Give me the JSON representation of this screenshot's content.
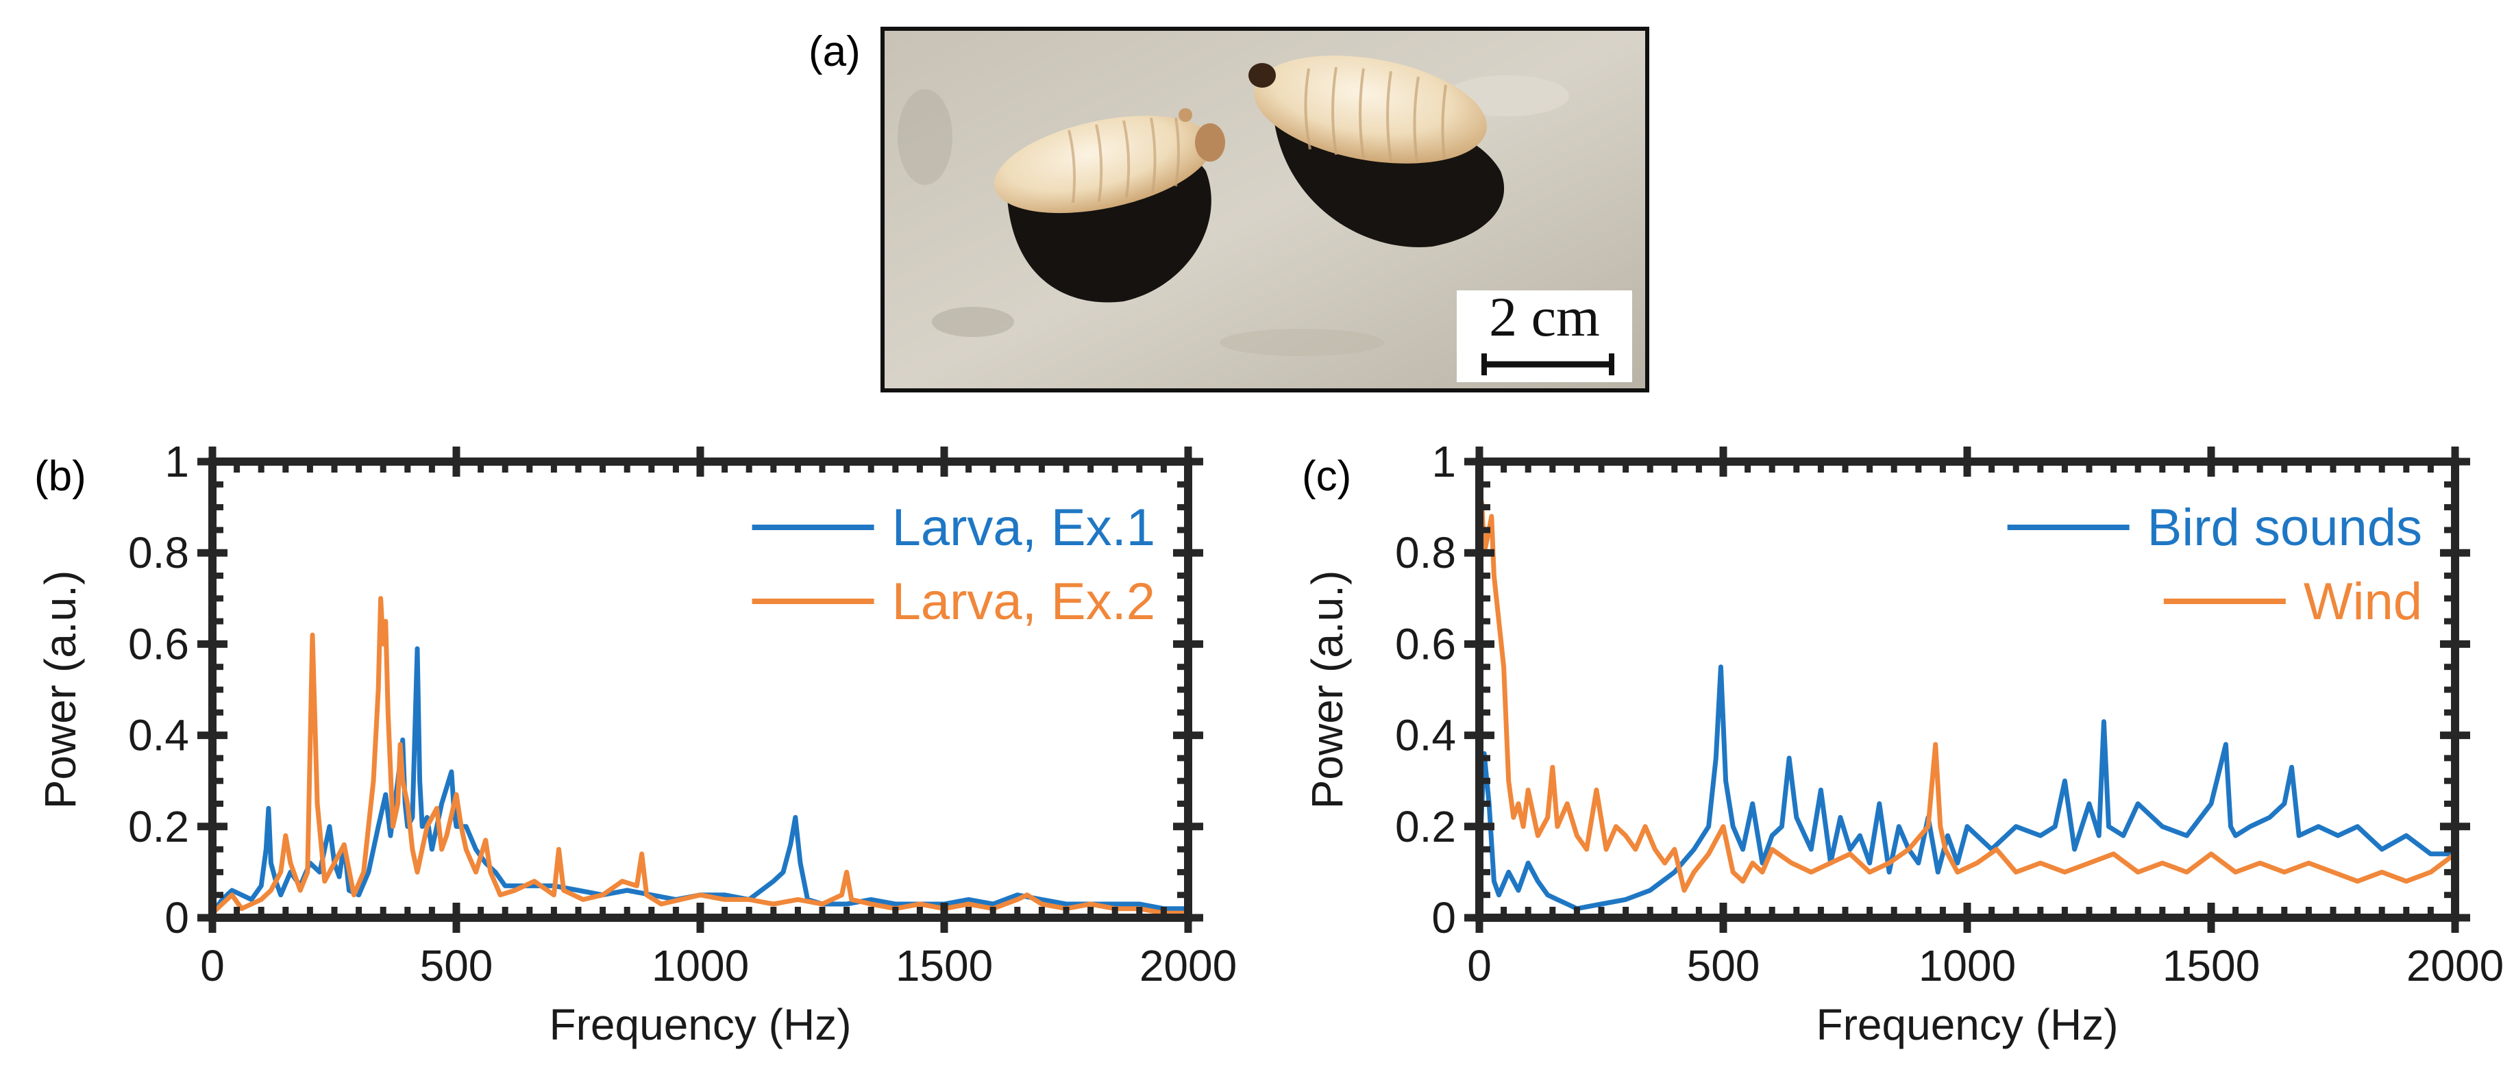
{
  "panel_a": {
    "label": "(a)",
    "photo_subject": "larvae",
    "scale_bar_label": "2 cm"
  },
  "colors": {
    "series1": "#1f77c4",
    "series2": "#f0873a",
    "axis": "#262626"
  },
  "chart_data": [
    {
      "panel": "(b)",
      "type": "line",
      "title": "",
      "xlabel": "Frequency (Hz)",
      "ylabel": "Power (a.u.)",
      "xlim": [
        0,
        2000
      ],
      "ylim": [
        0,
        1
      ],
      "xticks": [
        0,
        500,
        1000,
        1500,
        2000
      ],
      "yticks": [
        0,
        0.2,
        0.4,
        0.6,
        0.8,
        1
      ],
      "ytick_labels": [
        "0",
        "0.2",
        "0.4",
        "0.6",
        "0.8",
        "1"
      ],
      "legend_position": "top-right",
      "series": [
        {
          "name": "Larva, Ex.1",
          "x": [
            0,
            20,
            40,
            60,
            80,
            100,
            110,
            115,
            120,
            130,
            140,
            160,
            180,
            200,
            220,
            240,
            250,
            260,
            270,
            280,
            300,
            320,
            340,
            355,
            365,
            380,
            390,
            395,
            400,
            410,
            420,
            425,
            430,
            440,
            450,
            470,
            490,
            495,
            500,
            520,
            540,
            560,
            580,
            600,
            650,
            700,
            750,
            800,
            850,
            900,
            950,
            1000,
            1050,
            1100,
            1150,
            1170,
            1185,
            1195,
            1205,
            1220,
            1250,
            1300,
            1350,
            1400,
            1450,
            1500,
            1550,
            1600,
            1650,
            1700,
            1750,
            1800,
            1850,
            1900,
            1950,
            2000
          ],
          "values": [
            0.01,
            0.04,
            0.06,
            0.05,
            0.04,
            0.07,
            0.15,
            0.24,
            0.12,
            0.08,
            0.05,
            0.1,
            0.07,
            0.12,
            0.1,
            0.2,
            0.12,
            0.09,
            0.16,
            0.06,
            0.05,
            0.1,
            0.2,
            0.27,
            0.18,
            0.3,
            0.39,
            0.25,
            0.2,
            0.22,
            0.59,
            0.3,
            0.2,
            0.22,
            0.15,
            0.25,
            0.32,
            0.24,
            0.2,
            0.2,
            0.15,
            0.12,
            0.1,
            0.07,
            0.07,
            0.07,
            0.06,
            0.05,
            0.06,
            0.05,
            0.04,
            0.05,
            0.05,
            0.04,
            0.08,
            0.1,
            0.16,
            0.22,
            0.12,
            0.04,
            0.03,
            0.03,
            0.04,
            0.03,
            0.03,
            0.03,
            0.04,
            0.03,
            0.05,
            0.04,
            0.03,
            0.03,
            0.03,
            0.03,
            0.02,
            0.02
          ]
        },
        {
          "name": "Larva, Ex.2",
          "x": [
            0,
            20,
            40,
            60,
            80,
            100,
            120,
            140,
            150,
            160,
            180,
            195,
            205,
            215,
            230,
            250,
            270,
            290,
            310,
            320,
            330,
            340,
            345,
            350,
            355,
            360,
            370,
            380,
            385,
            390,
            400,
            410,
            420,
            440,
            460,
            470,
            480,
            500,
            510,
            520,
            540,
            560,
            570,
            590,
            620,
            660,
            700,
            710,
            720,
            760,
            800,
            840,
            870,
            880,
            890,
            920,
            960,
            1000,
            1050,
            1100,
            1150,
            1200,
            1250,
            1290,
            1300,
            1310,
            1350,
            1400,
            1450,
            1500,
            1550,
            1600,
            1650,
            1670,
            1700,
            1750,
            1800,
            1850,
            1900,
            1950,
            2000
          ],
          "values": [
            0.01,
            0.03,
            0.05,
            0.02,
            0.03,
            0.04,
            0.06,
            0.1,
            0.18,
            0.12,
            0.06,
            0.1,
            0.62,
            0.25,
            0.08,
            0.12,
            0.16,
            0.05,
            0.1,
            0.2,
            0.3,
            0.5,
            0.7,
            0.6,
            0.65,
            0.45,
            0.2,
            0.25,
            0.38,
            0.3,
            0.25,
            0.15,
            0.1,
            0.2,
            0.24,
            0.15,
            0.18,
            0.27,
            0.2,
            0.15,
            0.1,
            0.17,
            0.1,
            0.05,
            0.06,
            0.08,
            0.05,
            0.15,
            0.06,
            0.04,
            0.05,
            0.08,
            0.07,
            0.14,
            0.05,
            0.03,
            0.04,
            0.05,
            0.04,
            0.04,
            0.03,
            0.04,
            0.03,
            0.05,
            0.1,
            0.04,
            0.03,
            0.02,
            0.03,
            0.02,
            0.03,
            0.02,
            0.04,
            0.05,
            0.03,
            0.02,
            0.03,
            0.02,
            0.02,
            0.01,
            0.01
          ]
        }
      ]
    },
    {
      "panel": "(c)",
      "type": "line",
      "title": "",
      "xlabel": "Frequency (Hz)",
      "ylabel": "Power (a.u.)",
      "xlim": [
        0,
        2000
      ],
      "ylim": [
        0,
        1
      ],
      "xticks": [
        0,
        500,
        1000,
        1500,
        2000
      ],
      "yticks": [
        0,
        0.2,
        0.4,
        0.6,
        0.8,
        1
      ],
      "ytick_labels": [
        "0",
        "0.2",
        "0.4",
        "0.6",
        "0.8",
        "1"
      ],
      "legend_position": "top-right",
      "series": [
        {
          "name": "Bird sounds",
          "x": [
            0,
            10,
            20,
            30,
            40,
            60,
            80,
            100,
            120,
            140,
            160,
            180,
            200,
            250,
            300,
            350,
            400,
            440,
            470,
            485,
            495,
            505,
            520,
            540,
            560,
            580,
            600,
            620,
            635,
            650,
            680,
            700,
            720,
            740,
            760,
            780,
            800,
            820,
            840,
            860,
            880,
            900,
            920,
            940,
            960,
            980,
            1000,
            1050,
            1100,
            1150,
            1180,
            1200,
            1220,
            1250,
            1270,
            1280,
            1290,
            1320,
            1350,
            1400,
            1450,
            1500,
            1530,
            1540,
            1550,
            1580,
            1620,
            1650,
            1665,
            1680,
            1720,
            1760,
            1800,
            1850,
            1900,
            1950,
            2000
          ],
          "values": [
            0.12,
            0.36,
            0.25,
            0.08,
            0.05,
            0.1,
            0.06,
            0.12,
            0.08,
            0.05,
            0.04,
            0.03,
            0.02,
            0.03,
            0.04,
            0.06,
            0.1,
            0.15,
            0.2,
            0.35,
            0.55,
            0.3,
            0.2,
            0.15,
            0.25,
            0.12,
            0.18,
            0.2,
            0.35,
            0.22,
            0.15,
            0.28,
            0.12,
            0.22,
            0.15,
            0.18,
            0.12,
            0.25,
            0.1,
            0.2,
            0.15,
            0.12,
            0.22,
            0.1,
            0.18,
            0.12,
            0.2,
            0.15,
            0.2,
            0.18,
            0.2,
            0.3,
            0.15,
            0.25,
            0.18,
            0.43,
            0.2,
            0.18,
            0.25,
            0.2,
            0.18,
            0.25,
            0.38,
            0.2,
            0.18,
            0.2,
            0.22,
            0.25,
            0.33,
            0.18,
            0.2,
            0.18,
            0.2,
            0.15,
            0.18,
            0.14,
            0.14
          ]
        },
        {
          "name": "Wind",
          "x": [
            0,
            5,
            10,
            20,
            25,
            30,
            40,
            50,
            60,
            70,
            80,
            90,
            100,
            120,
            140,
            150,
            160,
            180,
            200,
            220,
            240,
            260,
            280,
            300,
            320,
            340,
            360,
            380,
            400,
            420,
            440,
            470,
            500,
            520,
            540,
            560,
            580,
            600,
            640,
            680,
            720,
            760,
            800,
            840,
            880,
            920,
            935,
            945,
            955,
            980,
            1020,
            1060,
            1100,
            1150,
            1200,
            1250,
            1300,
            1350,
            1400,
            1450,
            1500,
            1550,
            1600,
            1650,
            1700,
            1750,
            1800,
            1850,
            1900,
            1950,
            2000
          ],
          "values": [
            0.5,
            0.91,
            0.8,
            0.85,
            0.88,
            0.75,
            0.65,
            0.55,
            0.3,
            0.22,
            0.25,
            0.2,
            0.28,
            0.18,
            0.22,
            0.33,
            0.2,
            0.25,
            0.18,
            0.15,
            0.28,
            0.15,
            0.2,
            0.18,
            0.15,
            0.2,
            0.15,
            0.12,
            0.15,
            0.06,
            0.1,
            0.14,
            0.2,
            0.1,
            0.08,
            0.12,
            0.1,
            0.15,
            0.12,
            0.1,
            0.12,
            0.14,
            0.1,
            0.12,
            0.15,
            0.2,
            0.38,
            0.2,
            0.15,
            0.1,
            0.12,
            0.15,
            0.1,
            0.12,
            0.1,
            0.12,
            0.14,
            0.1,
            0.12,
            0.1,
            0.14,
            0.1,
            0.12,
            0.1,
            0.12,
            0.1,
            0.08,
            0.1,
            0.08,
            0.1,
            0.14
          ]
        }
      ]
    }
  ]
}
